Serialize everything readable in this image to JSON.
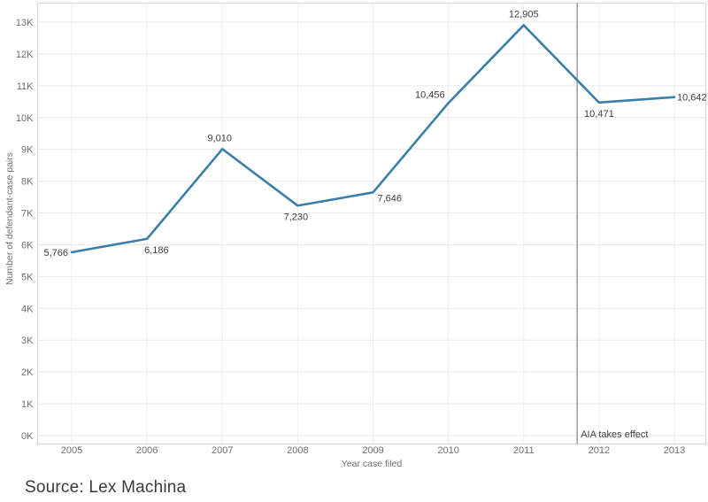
{
  "page": {
    "source_note": "Source: Lex Machina"
  },
  "chart_data": {
    "type": "line",
    "title": "",
    "xlabel": "Year case filed",
    "ylabel": "Number of defendant-case pairs",
    "x": [
      2005,
      2006,
      2007,
      2008,
      2009,
      2010,
      2011,
      2012,
      2013
    ],
    "categories": [
      "2005",
      "2006",
      "2007",
      "2008",
      "2009",
      "2010",
      "2011",
      "2012",
      "2013"
    ],
    "values": [
      5766,
      6186,
      9010,
      7230,
      7646,
      10456,
      12905,
      10471,
      10642
    ],
    "value_labels": [
      "5,766",
      "6,186",
      "9,010",
      "7,230",
      "7,646",
      "10,456",
      "12,905",
      "10,471",
      "10,642"
    ],
    "ylim": [
      0,
      13000
    ],
    "y_tick_step": 1000,
    "y_tick_labels": [
      "0K",
      "1K",
      "2K",
      "3K",
      "4K",
      "5K",
      "6K",
      "7K",
      "8K",
      "9K",
      "10K",
      "11K",
      "12K",
      "13K"
    ],
    "grid": true,
    "legend": "none",
    "line_color": "#3b7fa8",
    "annotation": {
      "label": "AIA takes effect",
      "x": 2011.71,
      "line_color": "#9b9b9b"
    }
  }
}
